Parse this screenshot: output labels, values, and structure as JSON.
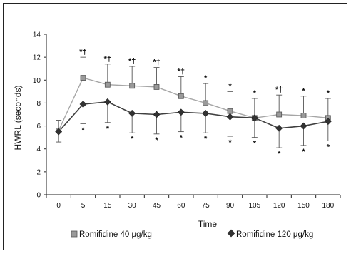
{
  "chart_data": {
    "type": "line",
    "title": "",
    "xlabel": "Time",
    "ylabel": "HWRL (seconds)",
    "categories": [
      "0",
      "5",
      "15",
      "30",
      "45",
      "60",
      "75",
      "90",
      "105",
      "120",
      "150",
      "180"
    ],
    "ylim": [
      0,
      14
    ],
    "yticks": [
      0,
      2,
      4,
      6,
      8,
      10,
      12,
      14
    ],
    "grid": false,
    "legend_position": "bottom",
    "series": [
      {
        "name": "Romifidine 40 μg/kg",
        "marker": "square",
        "color": "#a6a6a6",
        "values": [
          5.6,
          10.2,
          9.6,
          9.5,
          9.4,
          8.6,
          8.0,
          7.3,
          6.7,
          7.0,
          6.9,
          6.7
        ],
        "error_plus": [
          0.9,
          1.8,
          1.8,
          1.7,
          1.7,
          1.7,
          1.7,
          1.7,
          1.7,
          1.7,
          1.7,
          1.7
        ],
        "annotations": [
          "",
          "*†",
          "*†",
          "*†",
          "*†",
          "*†",
          "*",
          "*",
          "*",
          "*†",
          "*",
          "*"
        ]
      },
      {
        "name": "Romifidine 120 μg/kg",
        "marker": "diamond",
        "color": "#3f3f3f",
        "values": [
          5.5,
          7.9,
          8.1,
          7.1,
          7.0,
          7.2,
          7.1,
          6.8,
          6.7,
          5.8,
          6.0,
          6.4
        ],
        "error_minus": [
          0.9,
          1.7,
          1.8,
          1.7,
          1.7,
          1.7,
          1.7,
          1.7,
          1.7,
          1.7,
          1.7,
          1.7
        ],
        "annotations": [
          "",
          "*",
          "*",
          "*",
          "*",
          "*",
          "*",
          "*",
          "*",
          "*",
          "*",
          "*"
        ]
      }
    ]
  },
  "colors": {
    "axis": "#222222",
    "series1_line": "#a6a6a6",
    "series1_fill": "#9a9a9a",
    "series2_line": "#3f3f3f",
    "series2_fill": "#333333",
    "error_bar": "#555555"
  }
}
